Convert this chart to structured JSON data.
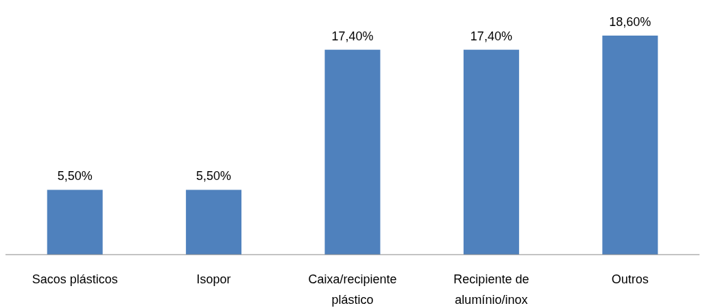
{
  "chart_data": {
    "type": "bar",
    "categories": [
      "Sacos plásticos",
      "Isopor",
      "Caixa/recipiente plástico",
      "Recipiente de alumínio/inox",
      "Outros"
    ],
    "values": [
      5.5,
      5.5,
      17.4,
      17.4,
      18.6
    ],
    "value_labels": [
      "5,50%",
      "5,50%",
      "17,40%",
      "17,40%",
      "18,60%"
    ],
    "color": "#4f81bd"
  }
}
